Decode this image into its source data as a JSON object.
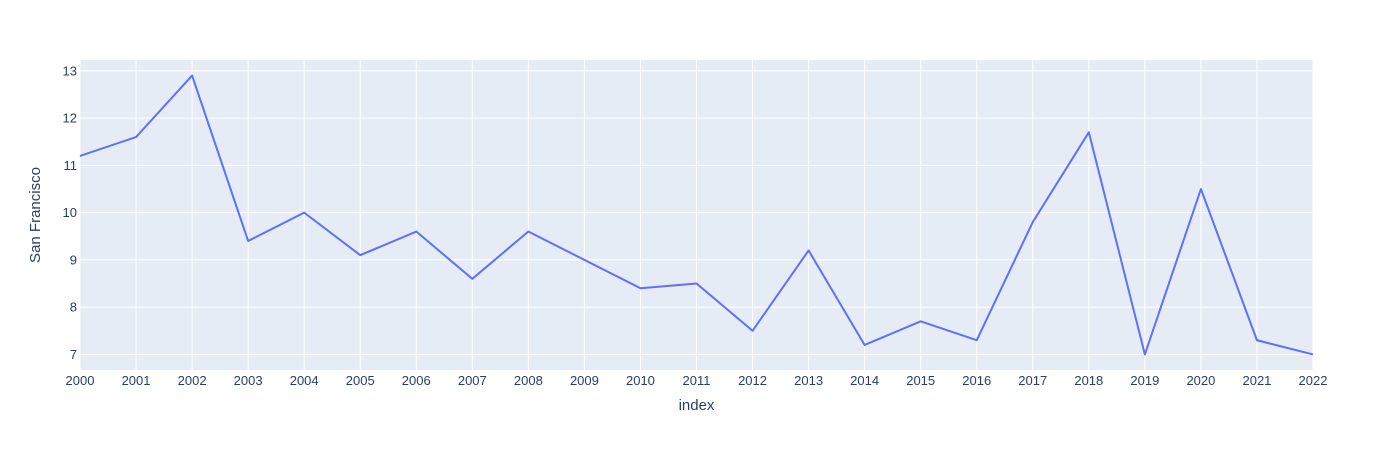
{
  "chart_data": {
    "type": "line",
    "title": "",
    "xlabel": "index",
    "ylabel": "San Francisco",
    "x": [
      2000,
      2001,
      2002,
      2003,
      2004,
      2005,
      2006,
      2007,
      2008,
      2009,
      2010,
      2011,
      2012,
      2013,
      2014,
      2015,
      2016,
      2017,
      2018,
      2019,
      2020,
      2021,
      2022
    ],
    "series": [
      {
        "name": "San Francisco",
        "values": [
          11.2,
          11.6,
          12.9,
          9.4,
          10.0,
          9.1,
          9.6,
          8.6,
          9.6,
          9.0,
          8.4,
          8.5,
          7.5,
          9.2,
          7.2,
          7.7,
          7.3,
          9.8,
          11.7,
          7.0,
          10.5,
          7.3,
          7.0
        ]
      }
    ],
    "xlim": [
      2000,
      2022
    ],
    "ylim": [
      6.67,
      13.23
    ],
    "yticks": [
      7,
      8,
      9,
      10,
      11,
      12,
      13
    ],
    "xticks": [
      2000,
      2001,
      2002,
      2003,
      2004,
      2005,
      2006,
      2007,
      2008,
      2009,
      2010,
      2011,
      2012,
      2013,
      2014,
      2015,
      2016,
      2017,
      2018,
      2019,
      2020,
      2021,
      2022
    ],
    "grid": true,
    "legend": "none"
  },
  "colors": {
    "line": "#636efa",
    "plot_bg": "#e5ecf6",
    "grid": "#ffffff",
    "text": "#2a3f5f"
  }
}
